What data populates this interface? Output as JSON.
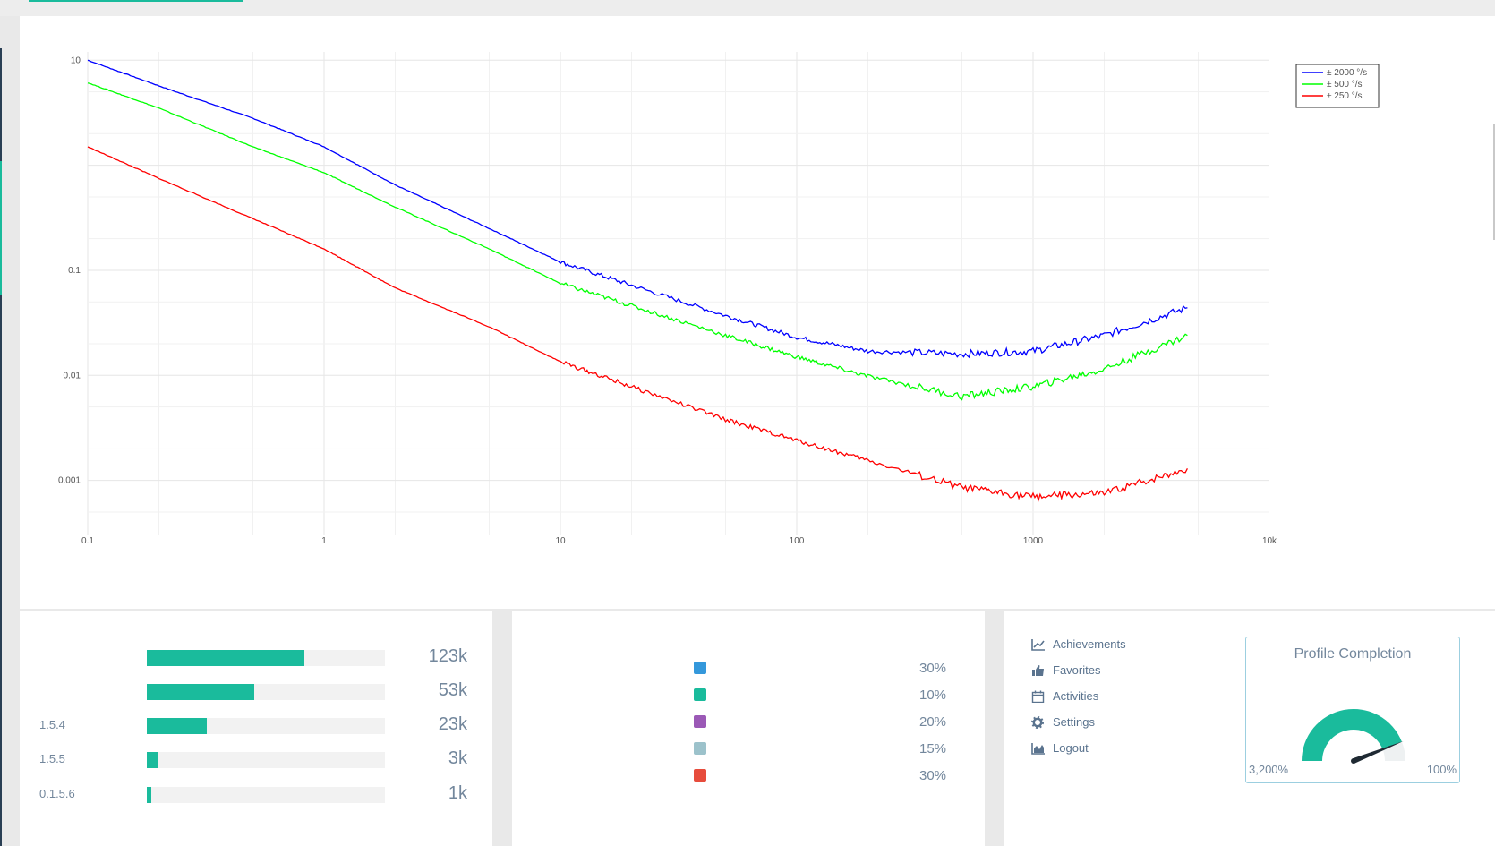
{
  "colors": {
    "accent": "#1abb9c",
    "blue_series": "#0000ff",
    "green_series": "#00ff00",
    "red_series": "#ff0000",
    "pie": [
      "#3498db",
      "#1abb9c",
      "#9b59b6",
      "#9cc2cb",
      "#e74c3c"
    ]
  },
  "chart_data": {
    "type": "line",
    "x_scale": "log",
    "y_scale": "log",
    "xlim": [
      0.1,
      10000
    ],
    "ylim": [
      0.0003,
      12
    ],
    "x_ticks": [
      "0.1",
      "1",
      "10",
      "100",
      "1000",
      "10k"
    ],
    "y_ticks": [
      "10",
      "0.1",
      "0.01",
      "0.001"
    ],
    "grid": true,
    "legend_position": "top-right",
    "series": [
      {
        "name": "± 2000 °/s",
        "color": "#0000ff",
        "x": [
          0.1,
          0.2,
          0.5,
          1,
          2,
          5,
          10,
          20,
          50,
          100,
          200,
          500,
          1000,
          2000,
          4500
        ],
        "y": [
          10,
          5.7,
          2.8,
          1.5,
          0.65,
          0.25,
          0.12,
          0.072,
          0.037,
          0.023,
          0.017,
          0.016,
          0.017,
          0.024,
          0.044
        ]
      },
      {
        "name": "± 500 °/s",
        "color": "#00ff00",
        "x": [
          0.1,
          0.2,
          0.5,
          1,
          2,
          5,
          10,
          20,
          50,
          100,
          200,
          500,
          1000,
          2000,
          4500
        ],
        "y": [
          6.1,
          3.5,
          1.5,
          0.85,
          0.4,
          0.16,
          0.075,
          0.046,
          0.024,
          0.015,
          0.0098,
          0.0063,
          0.0078,
          0.0115,
          0.024
        ]
      },
      {
        "name": "± 250 °/s",
        "color": "#ff0000",
        "x": [
          0.1,
          0.2,
          0.5,
          1,
          2,
          5,
          10,
          20,
          50,
          100,
          200,
          500,
          1000,
          2000,
          4500
        ],
        "y": [
          1.5,
          0.75,
          0.31,
          0.16,
          0.068,
          0.029,
          0.0135,
          0.0078,
          0.0038,
          0.0024,
          0.00155,
          0.00085,
          0.0007,
          0.00075,
          0.0013
        ]
      }
    ]
  },
  "versions": [
    {
      "label": "",
      "value": "123k",
      "fill": 0.66
    },
    {
      "label": "",
      "value": "53k",
      "fill": 0.45
    },
    {
      "label": "1.5.4",
      "value": "23k",
      "fill": 0.25
    },
    {
      "label": "1.5.5",
      "value": "3k",
      "fill": 0.05
    },
    {
      "label": "0.1.5.6",
      "value": "1k",
      "fill": 0.02
    }
  ],
  "pie_legend": [
    {
      "value": "30%"
    },
    {
      "value": "10%"
    },
    {
      "value": "20%"
    },
    {
      "value": "15%"
    },
    {
      "value": "30%"
    }
  ],
  "menu": [
    {
      "label": "Achievements",
      "icon": "line-chart-icon"
    },
    {
      "label": "Favorites",
      "icon": "thumbs-up-icon"
    },
    {
      "label": "Activities",
      "icon": "calendar-icon"
    },
    {
      "label": "Settings",
      "icon": "gear-icon"
    },
    {
      "label": "Logout",
      "icon": "area-chart-icon"
    }
  ],
  "profile": {
    "title": "Profile Completion",
    "gauge_min": "3,200%",
    "gauge_max": "100%",
    "fill": 0.88
  }
}
